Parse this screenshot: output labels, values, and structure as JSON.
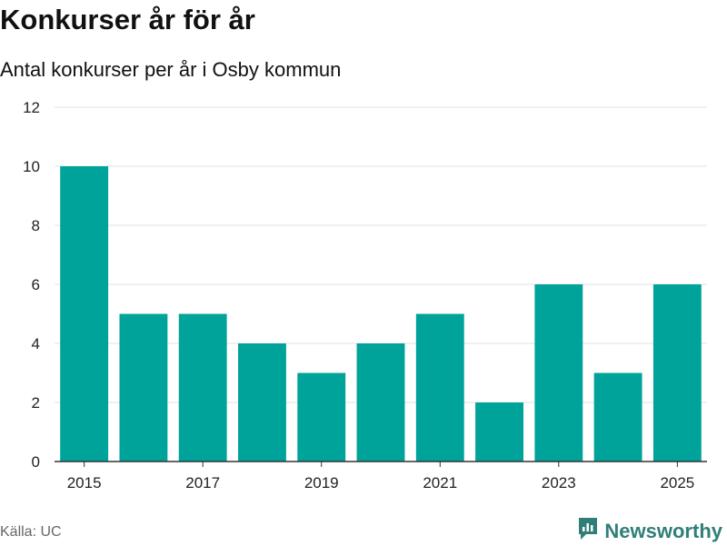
{
  "header": {
    "title": "Konkurser år för år",
    "subtitle": "Antal konkurser per år i Osby kommun"
  },
  "footer": {
    "source": "Källa: UC",
    "brand": "Newsworthy"
  },
  "colors": {
    "bar": "#00a39a",
    "grid": "#e2e2e2",
    "axis": "#333333",
    "brand": "#2f7f78"
  },
  "chart_data": {
    "type": "bar",
    "title": "Konkurser år för år",
    "subtitle": "Antal konkurser per år i Osby kommun",
    "categories": [
      "2015",
      "2016",
      "2017",
      "2018",
      "2019",
      "2020",
      "2021",
      "2022",
      "2023",
      "2024",
      "2025"
    ],
    "values": [
      10,
      5,
      5,
      4,
      3,
      4,
      5,
      2,
      6,
      3,
      6
    ],
    "x_tick_labels": [
      "2015",
      "2017",
      "2019",
      "2021",
      "2023",
      "2025"
    ],
    "y_ticks": [
      0,
      2,
      4,
      6,
      8,
      10,
      12
    ],
    "ylim": [
      0,
      12
    ],
    "xlabel": "",
    "ylabel": "",
    "grid": true
  }
}
